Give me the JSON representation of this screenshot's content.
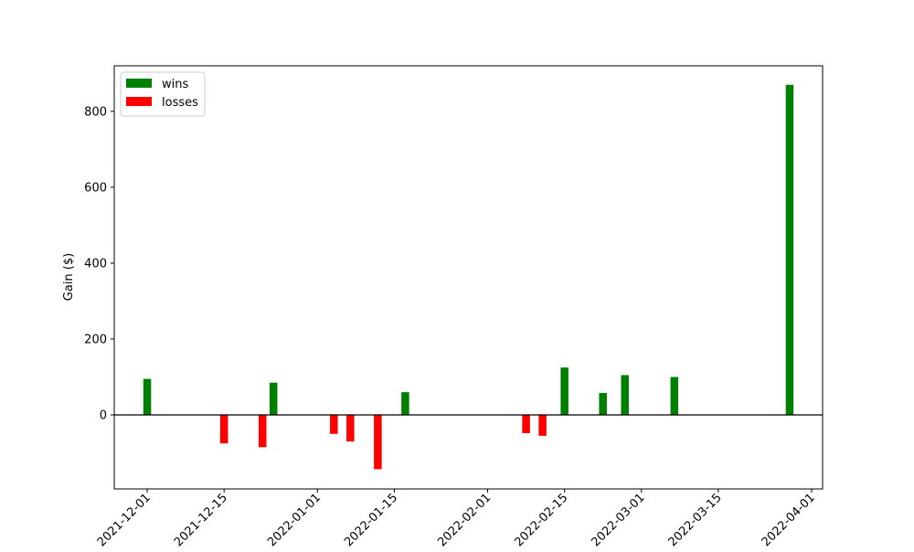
{
  "chart_data": {
    "type": "bar",
    "title": "",
    "xlabel": "",
    "ylabel": "Gain ($)",
    "x_axis": "date",
    "xlim": [
      "2021-11-25",
      "2022-04-03"
    ],
    "ylim": [
      -195,
      920
    ],
    "xticks": [
      "2021-12-01",
      "2021-12-15",
      "2022-01-01",
      "2022-01-15",
      "2022-02-01",
      "2022-02-15",
      "2022-03-01",
      "2022-03-15",
      "2022-04-01"
    ],
    "yticks": [
      0,
      200,
      400,
      600,
      800
    ],
    "zero_line": true,
    "grid": false,
    "legend_position": "top-left",
    "series": [
      {
        "name": "wins",
        "color": "#008000",
        "points": [
          {
            "date": "2021-12-01",
            "value": 95
          },
          {
            "date": "2021-12-24",
            "value": 85
          },
          {
            "date": "2022-01-17",
            "value": 60
          },
          {
            "date": "2022-02-15",
            "value": 125
          },
          {
            "date": "2022-02-22",
            "value": 58
          },
          {
            "date": "2022-02-26",
            "value": 105
          },
          {
            "date": "2022-03-07",
            "value": 100
          },
          {
            "date": "2022-03-28",
            "value": 870
          }
        ]
      },
      {
        "name": "losses",
        "color": "#ff0000",
        "points": [
          {
            "date": "2021-12-15",
            "value": -75
          },
          {
            "date": "2021-12-22",
            "value": -85
          },
          {
            "date": "2022-01-04",
            "value": -50
          },
          {
            "date": "2022-01-07",
            "value": -70
          },
          {
            "date": "2022-01-12",
            "value": -143
          },
          {
            "date": "2022-02-08",
            "value": -48
          },
          {
            "date": "2022-02-11",
            "value": -55
          }
        ]
      }
    ]
  }
}
